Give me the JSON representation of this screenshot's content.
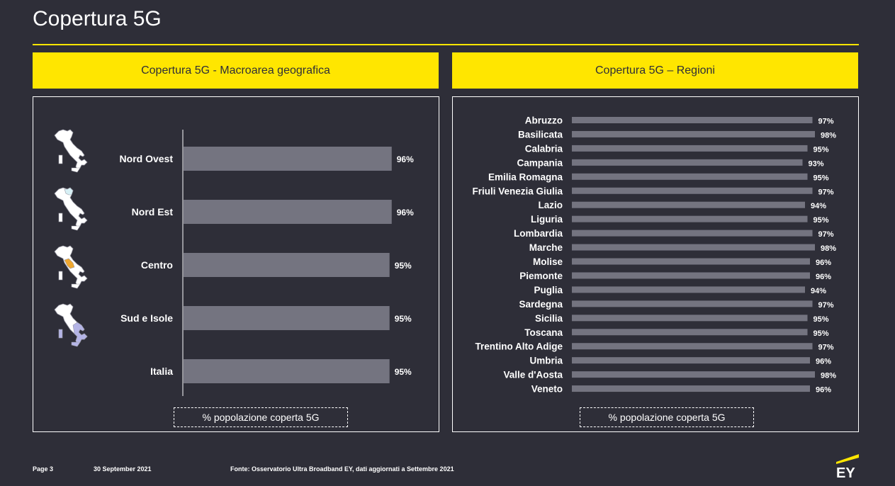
{
  "page": {
    "title": "Copertura 5G",
    "footer": {
      "page": "Page 3",
      "date": "30 September 2021",
      "source": "Fonte: Osservatorio Ultra Broadband EY, dati aggiornati a Settembre 2021"
    },
    "logo_text": "EY"
  },
  "colors": {
    "accent": "#ffe600",
    "background": "#2e2e38",
    "bar": "#747480",
    "map_base": "#ffffff",
    "map_nordest": "#d7f0f5",
    "map_centro": "#f0a830",
    "map_sud": "#b4b4e6"
  },
  "left_panel": {
    "banner": "Copertura 5G - Macroarea geografica",
    "legend": "% popolazione coperta 5G",
    "map_icons": [
      "italy-map-nord-ovest-icon",
      "italy-map-nord-est-icon",
      "italy-map-centro-icon",
      "italy-map-sud-isole-icon"
    ]
  },
  "right_panel": {
    "banner": "Copertura 5G – Regioni",
    "legend": "% popolazione coperta 5G"
  },
  "chart_data": [
    {
      "type": "bar",
      "orientation": "horizontal",
      "title": "Copertura 5G - Macroarea geografica",
      "xlabel": "% popolazione coperta 5G",
      "categories": [
        "Nord Ovest",
        "Nord Est",
        "Centro",
        "Sud e Isole",
        "Italia"
      ],
      "values": [
        96,
        96,
        95,
        95,
        95
      ],
      "value_labels": [
        "96%",
        "96%",
        "95%",
        "95%",
        "95%"
      ],
      "xlim": [
        0,
        100
      ]
    },
    {
      "type": "bar",
      "orientation": "horizontal",
      "title": "Copertura 5G – Regioni",
      "xlabel": "% popolazione coperta 5G",
      "categories": [
        "Abruzzo",
        "Basilicata",
        "Calabria",
        "Campania",
        "Emilia Romagna",
        "Friuli Venezia Giulia",
        "Lazio",
        "Liguria",
        "Lombardia",
        "Marche",
        "Molise",
        "Piemonte",
        "Puglia",
        "Sardegna",
        "Sicilia",
        "Toscana",
        "Trentino Alto Adige",
        "Umbria",
        "Valle d'Aosta",
        "Veneto"
      ],
      "values": [
        97,
        98,
        95,
        93,
        95,
        97,
        94,
        95,
        97,
        98,
        96,
        96,
        94,
        97,
        95,
        95,
        97,
        96,
        98,
        96
      ],
      "value_labels": [
        "97%",
        "98%",
        "95%",
        "93%",
        "95%",
        "97%",
        "94%",
        "95%",
        "97%",
        "98%",
        "96%",
        "96%",
        "94%",
        "97%",
        "95%",
        "95%",
        "97%",
        "96%",
        "98%",
        "96%"
      ],
      "xlim": [
        0,
        100
      ]
    }
  ]
}
